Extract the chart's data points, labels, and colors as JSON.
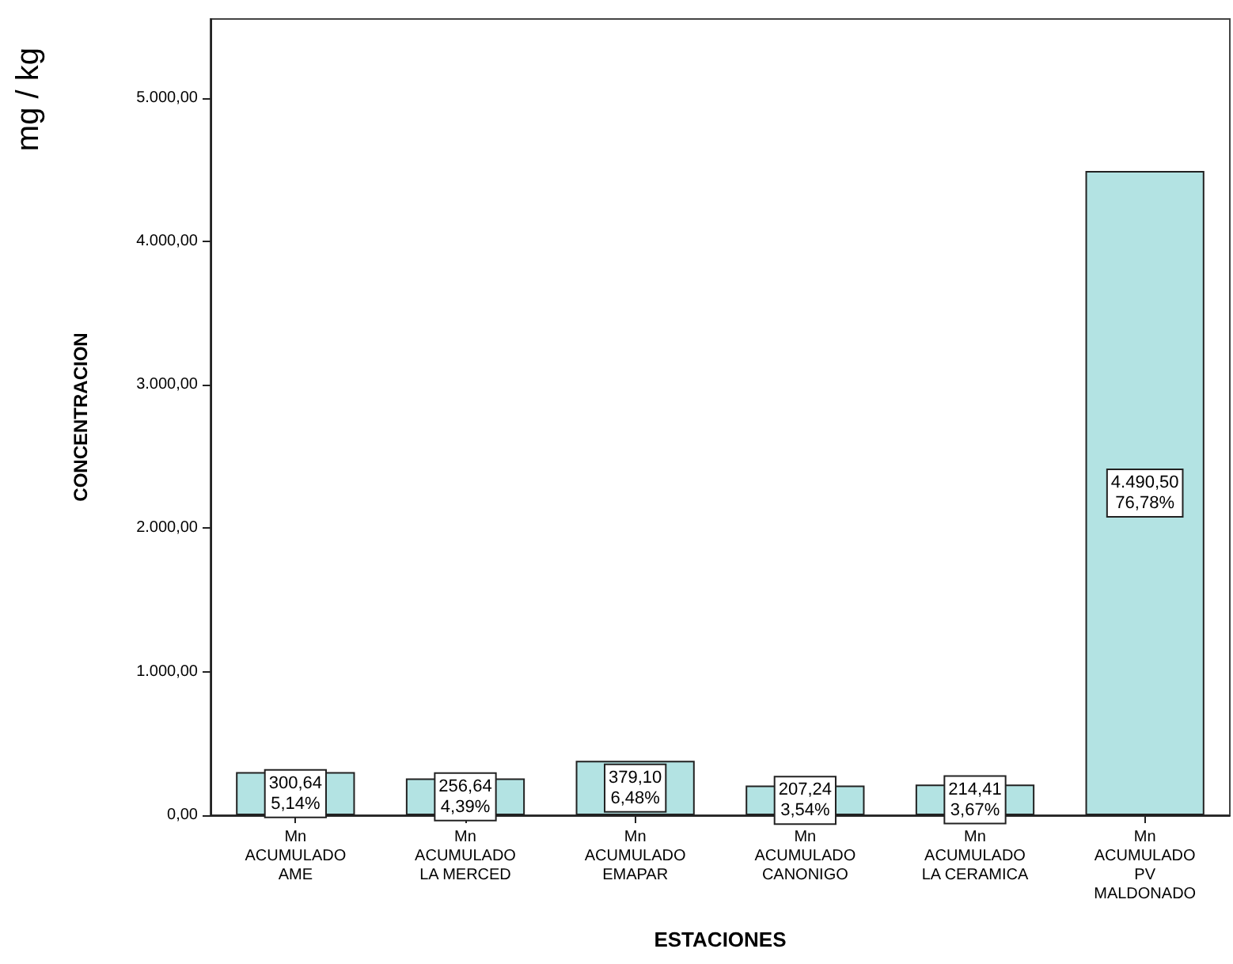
{
  "chart_data": {
    "type": "bar",
    "xlabel": "ESTACIONES",
    "ylabel": "CONCENTRACION",
    "annotations": [
      "mg / kg"
    ],
    "categories": [
      "Mn\nACUMULADO\nAME",
      "Mn\nACUMULADO\nLA MERCED",
      "Mn\nACUMULADO\nEMAPAR",
      "Mn\nACUMULADO\nCANONIGO",
      "Mn\nACUMULADO\nLA CERAMICA",
      "Mn\nACUMULADO\nPV\nMALDONADO"
    ],
    "values": [
      300.64,
      256.64,
      379.1,
      207.24,
      214.41,
      4490.5
    ],
    "value_labels": [
      "300,64\n5,14%",
      "256,64\n4,39%",
      "379,10\n6,48%",
      "207,24\n3,54%",
      "214,41\n3,67%",
      "4.490,50\n76,78%"
    ],
    "color": "#b3e3e3",
    "ylim": [
      0,
      5550
    ],
    "yticks": [
      {
        "value": 0,
        "label": "0,00"
      },
      {
        "value": 1000,
        "label": "1.000,00"
      },
      {
        "value": 2000,
        "label": "2.000,00"
      },
      {
        "value": 3000,
        "label": "3.000,00"
      },
      {
        "value": 4000,
        "label": "4.000,00"
      },
      {
        "value": 5000,
        "label": "5.000,00"
      }
    ],
    "grid": false
  }
}
